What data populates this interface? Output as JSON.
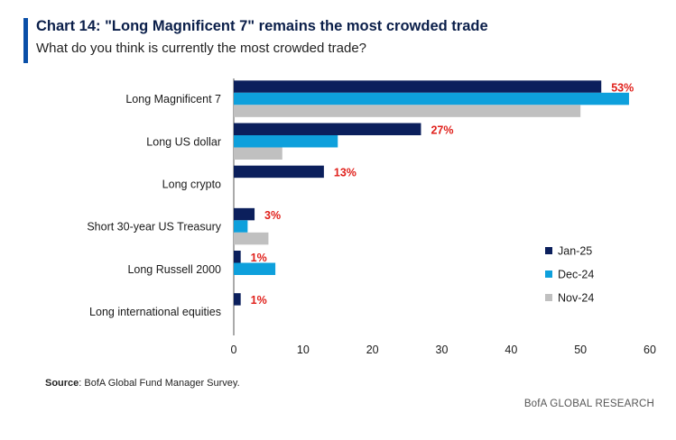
{
  "header": {
    "title": "Chart 14: \"Long Magnificent 7\" remains the most crowded trade",
    "subtitle": "What do you think is currently the most crowded trade?"
  },
  "footer": {
    "source_label": "Source",
    "source_text": ": BofA Global Fund Manager Survey.",
    "credit": "BofA GLOBAL RESEARCH"
  },
  "chart_data": {
    "type": "bar",
    "orientation": "horizontal",
    "title": "Chart 14: \"Long Magnificent 7\" remains the most crowded trade",
    "subtitle": "What do you think is currently the most crowded trade?",
    "xlabel": "",
    "ylabel": "",
    "xlim": [
      0,
      60
    ],
    "xticks": [
      0,
      10,
      20,
      30,
      40,
      50,
      60
    ],
    "grid": false,
    "legend_position": "right",
    "categories": [
      "Long Magnificent 7",
      "Long US dollar",
      "Long crypto",
      "Short 30-year US Treasury",
      "Long Russell 2000",
      "Long international equities"
    ],
    "series": [
      {
        "name": "Jan-25",
        "color": "#0b1f5c",
        "values": [
          53,
          27,
          13,
          3,
          1,
          1
        ]
      },
      {
        "name": "Dec-24",
        "color": "#0ea0dc",
        "values": [
          57,
          15,
          null,
          2,
          6,
          null
        ]
      },
      {
        "name": "Nov-24",
        "color": "#c0c0c0",
        "values": [
          50,
          7,
          null,
          5,
          null,
          null
        ]
      }
    ],
    "data_labels": [
      "53%",
      "27%",
      "13%",
      "3%",
      "1%",
      "1%"
    ],
    "data_label_color": "#e0201b"
  }
}
